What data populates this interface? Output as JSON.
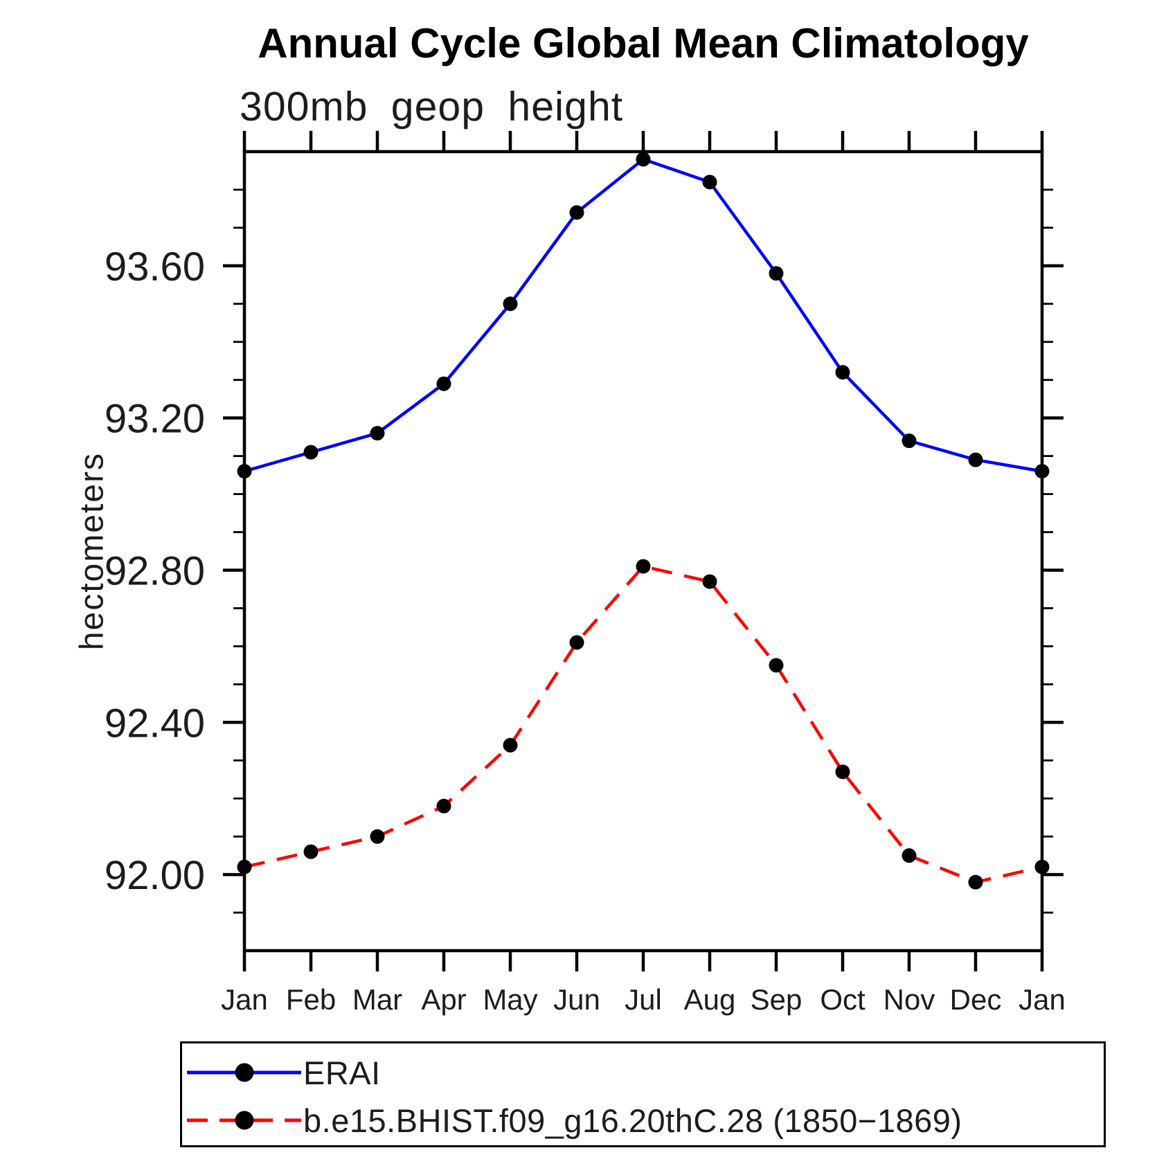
{
  "title": "Annual Cycle Global Mean Climatology",
  "subtitle": "300mb geop height",
  "y_axis": {
    "title": "hectometers"
  },
  "chart_data": {
    "type": "line",
    "title": "Annual Cycle Global Mean Climatology",
    "subtitle": "300mb geop height",
    "ylabel": "hectometers",
    "xlabel": "",
    "categories": [
      "Jan",
      "Feb",
      "Mar",
      "Apr",
      "May",
      "Jun",
      "Jul",
      "Aug",
      "Sep",
      "Oct",
      "Nov",
      "Dec",
      "Jan"
    ],
    "series": [
      {
        "name": "ERAI",
        "color": "#0000ff",
        "line_style": "solid",
        "marker": "circle",
        "marker_color": "#000000",
        "values": [
          93.06,
          93.11,
          93.16,
          93.29,
          93.5,
          93.74,
          93.88,
          93.82,
          93.58,
          93.32,
          93.14,
          93.09,
          93.06
        ]
      },
      {
        "name": "b.e15.BHIST.f09_g16.20thC.28 (1850−1869)",
        "color": "#ff0000",
        "line_style": "dashed",
        "marker": "circle",
        "marker_color": "#000000",
        "values": [
          92.02,
          92.06,
          92.1,
          92.18,
          92.34,
          92.61,
          92.81,
          92.77,
          92.55,
          92.27,
          92.05,
          91.98,
          92.02
        ]
      }
    ],
    "ylim": [
      91.8,
      93.9
    ],
    "y_major_ticks": [
      93.6,
      93.2,
      92.8,
      92.4,
      92.0
    ],
    "y_major_tick_labels": [
      "93.60",
      "93.20",
      "92.80",
      "92.40",
      "92.00"
    ],
    "y_minor_tick_step": 0.1,
    "grid": false,
    "legend_position": "bottom-left"
  }
}
